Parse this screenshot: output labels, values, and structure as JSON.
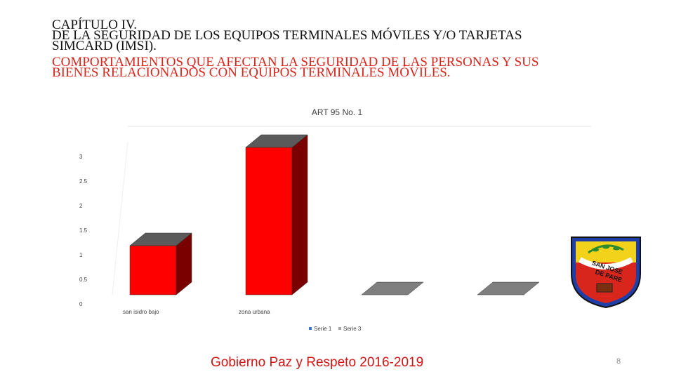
{
  "heading": {
    "line1": "CAPÍTULO IV.",
    "line2": "DE LA SEGURIDAD DE LOS EQUIPOS TERMINALES MÓVILES Y/O TARJETAS",
    "line3": "SIMCARD (IMSI).",
    "line4": "COMPORTAMIENTOS QUE AFECTAN LA SEGURIDAD DE LAS PERSONAS Y SUS",
    "line5": "BIENES RELACIONADOS CON EQUIPOS TERMINALES MÓVILES."
  },
  "chart_data": {
    "type": "bar",
    "title": "ART 95 No. 1",
    "categories": [
      "san isidro bajo",
      "zona urbana",
      "",
      ""
    ],
    "series": [
      {
        "name": "Serie 1",
        "values": [
          1,
          3,
          0,
          0
        ]
      },
      {
        "name": "Serie 3",
        "values": [
          0,
          0,
          0,
          0
        ]
      }
    ],
    "yticks": [
      "3",
      "2.5",
      "2",
      "1.5",
      "1",
      "0.5",
      "0"
    ],
    "ylim": [
      0,
      3
    ],
    "legend_position": "bottom",
    "three_d": true,
    "colors": {
      "front": "#ff0000",
      "side": "#7a0000",
      "top": "#5a5a5a",
      "base": "#7f7f7f"
    }
  },
  "logo": {
    "text_line1": "SAN JOSE",
    "text_line2": "DE PARE"
  },
  "footer": {
    "text": "Gobierno Paz y Respeto 2016-2019"
  },
  "page_number": "8"
}
